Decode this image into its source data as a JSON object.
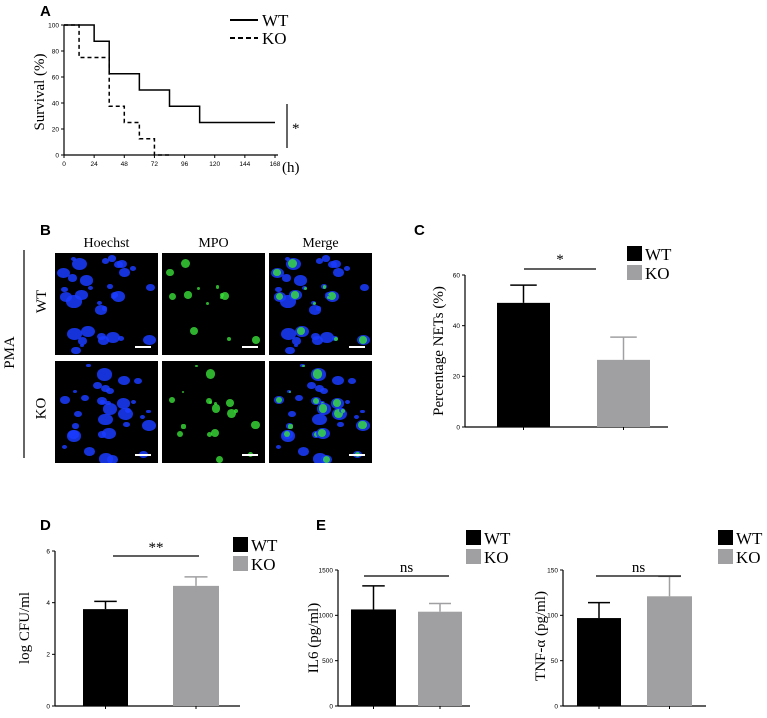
{
  "panels": {
    "A": "A",
    "B": "B",
    "C": "C",
    "D": "D",
    "E": "E"
  },
  "survival": {
    "xunit": "(h)",
    "ylabel": "Survival (%)",
    "xticks": [
      "0",
      "24",
      "48",
      "72",
      "96",
      "120",
      "144",
      "168"
    ],
    "yticks": [
      "0",
      "20",
      "40",
      "60",
      "80",
      "100"
    ],
    "legend": [
      "WT",
      "KO"
    ],
    "sig": "*"
  },
  "micro": {
    "columns": [
      "Hoechst",
      "MPO",
      "Merge"
    ],
    "rows": [
      "WT",
      "KO"
    ],
    "treatment": "PMA",
    "colors": {
      "hoechst": "#1a3cff",
      "mpo": "#3adf3a"
    }
  },
  "chart_data": [
    {
      "type": "line",
      "title": "",
      "xlabel": "(h)",
      "ylabel": "Survival (%)",
      "xlim": [
        0,
        168
      ],
      "ylim": [
        0,
        100
      ],
      "series": [
        {
          "name": "WT",
          "style": "solid",
          "x": [
            0,
            24,
            36,
            60,
            84,
            108,
            168
          ],
          "y": [
            100,
            87.5,
            62.5,
            50,
            37.5,
            25,
            25
          ]
        },
        {
          "name": "KO",
          "style": "dashed",
          "x": [
            0,
            12,
            36,
            48,
            60,
            72,
            84
          ],
          "y": [
            100,
            75,
            37.5,
            25,
            12.5,
            0,
            0
          ]
        }
      ]
    },
    {
      "type": "bar",
      "xlabel": "",
      "ylabel": "Percentage NETs (%)",
      "ylim": [
        0,
        60
      ],
      "yticks": [
        "0",
        "20",
        "40",
        "60"
      ],
      "categories": [
        "WT",
        "KO"
      ],
      "values": [
        49,
        26.5
      ],
      "errors": [
        7,
        9
      ],
      "colors": [
        "#000000",
        "#a0a0a2"
      ],
      "sig": "*"
    },
    {
      "type": "bar",
      "xlabel": "",
      "ylabel": "log CFU/ml",
      "ylim": [
        0,
        6
      ],
      "yticks": [
        "0",
        "2",
        "4",
        "6"
      ],
      "categories": [
        "WT",
        "KO"
      ],
      "values": [
        3.75,
        4.65
      ],
      "errors": [
        0.3,
        0.35
      ],
      "colors": [
        "#000000",
        "#a0a0a2"
      ],
      "sig": "**"
    },
    {
      "type": "bar",
      "xlabel": "",
      "ylabel": "IL6 (pg/ml)",
      "ylim": [
        0,
        1500
      ],
      "yticks": [
        "0",
        "500",
        "1000",
        "1500"
      ],
      "categories": [
        "WT",
        "KO"
      ],
      "values": [
        1065,
        1040
      ],
      "errors": [
        260,
        90
      ],
      "colors": [
        "#000000",
        "#a0a0a2"
      ],
      "sig": "ns"
    },
    {
      "type": "bar",
      "xlabel": "",
      "ylabel": "TNF-α (pg/ml)",
      "ylim": [
        0,
        150
      ],
      "yticks": [
        "0",
        "50",
        "100",
        "150"
      ],
      "categories": [
        "WT",
        "KO"
      ],
      "values": [
        97,
        121
      ],
      "errors": [
        17,
        22
      ],
      "colors": [
        "#000000",
        "#a0a0a2"
      ],
      "sig": "ns"
    }
  ]
}
